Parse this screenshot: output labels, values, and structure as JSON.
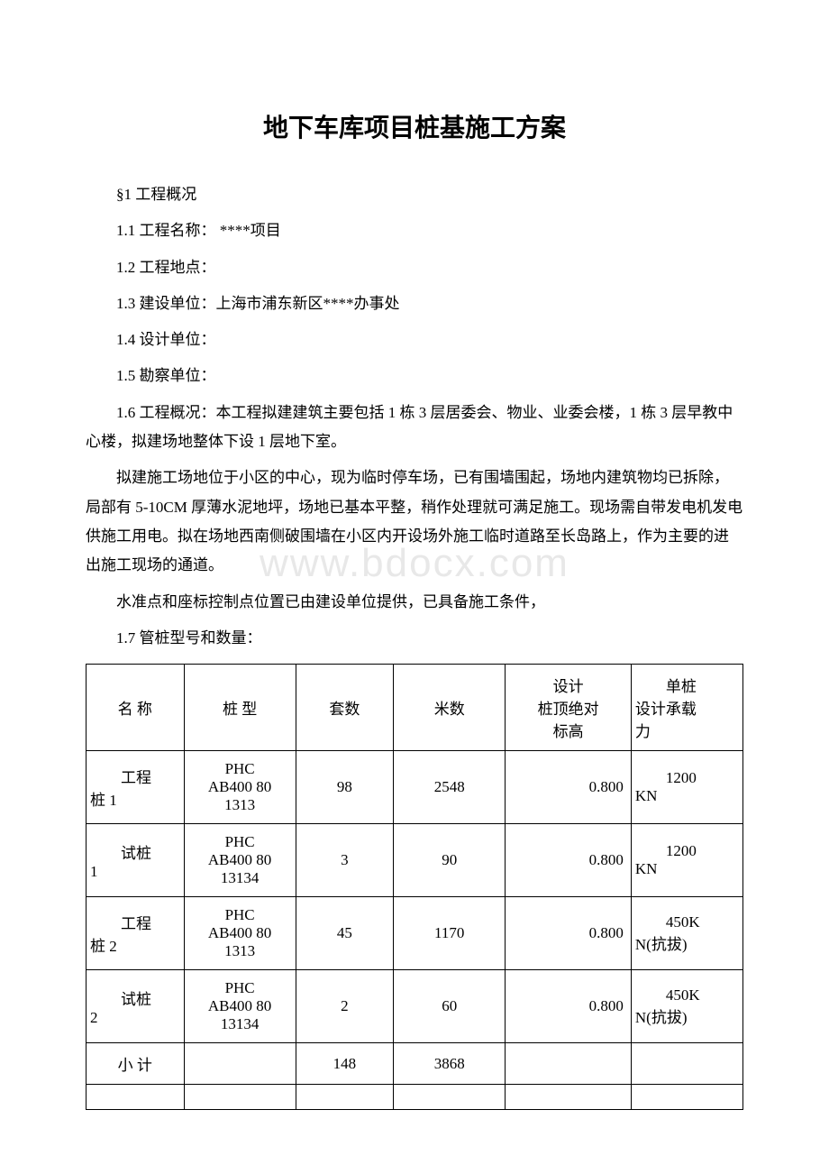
{
  "title": "地下车库项目桩基施工方案",
  "paragraphs": {
    "p1": "§1 工程概况",
    "p2": "1.1 工程名称： ****项目",
    "p3": "1.2 工程地点：",
    "p4": "1.3 建设单位：上海市浦东新区****办事处",
    "p5": "1.4 设计单位：",
    "p6": "1.5 勘察单位：",
    "p7": "1.6 工程概况：本工程拟建建筑主要包括 1 栋 3 层居委会、物业、业委会楼，1 栋 3 层早教中心楼，拟建场地整体下设 1 层地下室。",
    "p8": "拟建施工场地位于小区的中心，现为临时停车场，已有围墙围起，场地内建筑物均已拆除，局部有 5-10CM 厚薄水泥地坪，场地已基本平整，稍作处理就可满足施工。现场需自带发电机发电供施工用电。拟在场地西南侧破围墙在小区内开设场外施工临时道路至长岛路上，作为主要的进出施工现场的通道。",
    "p9": "水准点和座标控制点位置已由建设单位提供，已具备施工条件，",
    "p10": "1.7 管桩型号和数量："
  },
  "watermark": "www.bdocx.com",
  "table": {
    "headers": {
      "h1": "名 称",
      "h2": "桩 型",
      "h3": "套数",
      "h4": "米数",
      "h5a": "设计",
      "h5b": "桩顶绝对",
      "h5c": "标高",
      "h6a": "单桩",
      "h6b": "设计承载",
      "h6c": "力"
    },
    "rows": [
      {
        "c1a": "工程",
        "c1b": "桩 1",
        "c2a": "PHC",
        "c2b": "AB400 80",
        "c2c": "1313",
        "c3": "98",
        "c4": "2548",
        "c5": "0.800",
        "c6a": "1200",
        "c6b": "KN"
      },
      {
        "c1a": "试桩",
        "c1b": "1",
        "c2a": "PHC",
        "c2b": "AB400 80",
        "c2c": "13134",
        "c3": "3",
        "c4": "90",
        "c5": "0.800",
        "c6a": "1200",
        "c6b": "KN"
      },
      {
        "c1a": "工程",
        "c1b": "桩 2",
        "c2a": "PHC",
        "c2b": "AB400 80",
        "c2c": "1313",
        "c3": "45",
        "c4": "1170",
        "c5": "0.800",
        "c6a": "450K",
        "c6b": "N(抗拔)"
      },
      {
        "c1a": "试桩",
        "c1b": "2",
        "c2a": "PHC",
        "c2b": "AB400 80",
        "c2c": "13134",
        "c3": "2",
        "c4": "60",
        "c5": "0.800",
        "c6a": "450K",
        "c6b": "N(抗拔)"
      },
      {
        "c1a": "小 计",
        "c1b": "",
        "c2a": "",
        "c2b": "",
        "c2c": "",
        "c3": "148",
        "c4": "3868",
        "c5": "",
        "c6a": "",
        "c6b": ""
      }
    ]
  }
}
